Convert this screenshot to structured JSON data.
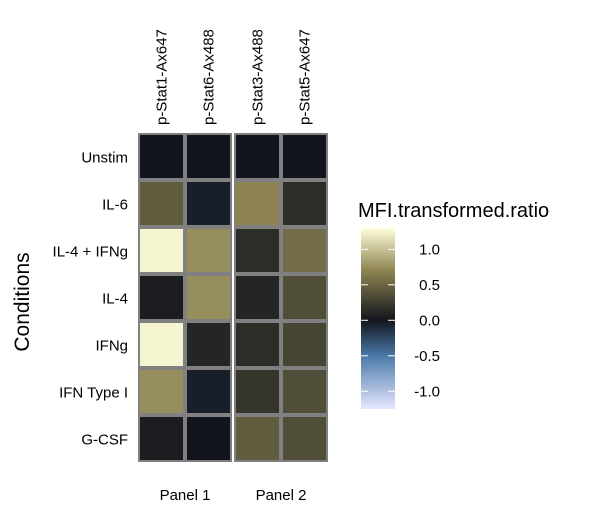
{
  "chart_data": {
    "type": "heatmap",
    "ylabel": "Conditions",
    "rows": [
      "Unstim",
      "IL-6",
      "IL-4 + IFNg",
      "IL-4",
      "IFNg",
      "IFN Type I",
      "G-CSF"
    ],
    "panels": [
      {
        "name": "Panel 1",
        "columns": [
          "p-Stat1-Ax647",
          "p-Stat6-Ax488"
        ],
        "values": [
          [
            0.0,
            0.0
          ],
          [
            0.45,
            -0.05
          ],
          [
            1.25,
            0.75
          ],
          [
            0.05,
            0.75
          ],
          [
            1.25,
            0.1
          ],
          [
            0.75,
            -0.05
          ],
          [
            0.05,
            0.0
          ]
        ]
      },
      {
        "name": "Panel 2",
        "columns": [
          "p-Stat3-Ax488",
          "p-Stat5-Ax647"
        ],
        "values": [
          [
            0.0,
            0.0
          ],
          [
            0.7,
            0.15
          ],
          [
            0.15,
            0.55
          ],
          [
            0.1,
            0.35
          ],
          [
            0.15,
            0.3
          ],
          [
            0.2,
            0.35
          ],
          [
            0.45,
            0.35
          ]
        ]
      }
    ],
    "legend": {
      "title": "MFI.transformed.ratio",
      "ticks": [
        1.0,
        0.5,
        0.0,
        -0.5,
        -1.0
      ],
      "tick_labels": [
        "1.0",
        "0.5",
        "0.0",
        "-0.5",
        "-1.0"
      ],
      "range": [
        -1.25,
        1.3
      ],
      "colors": [
        {
          "v": -1.25,
          "c": "#e6e6ff"
        },
        {
          "v": -0.5,
          "c": "#4a7aa8"
        },
        {
          "v": 0.0,
          "c": "#12151d"
        },
        {
          "v": 0.7,
          "c": "#8e8452"
        },
        {
          "v": 1.3,
          "c": "#ffffdc"
        }
      ]
    }
  }
}
